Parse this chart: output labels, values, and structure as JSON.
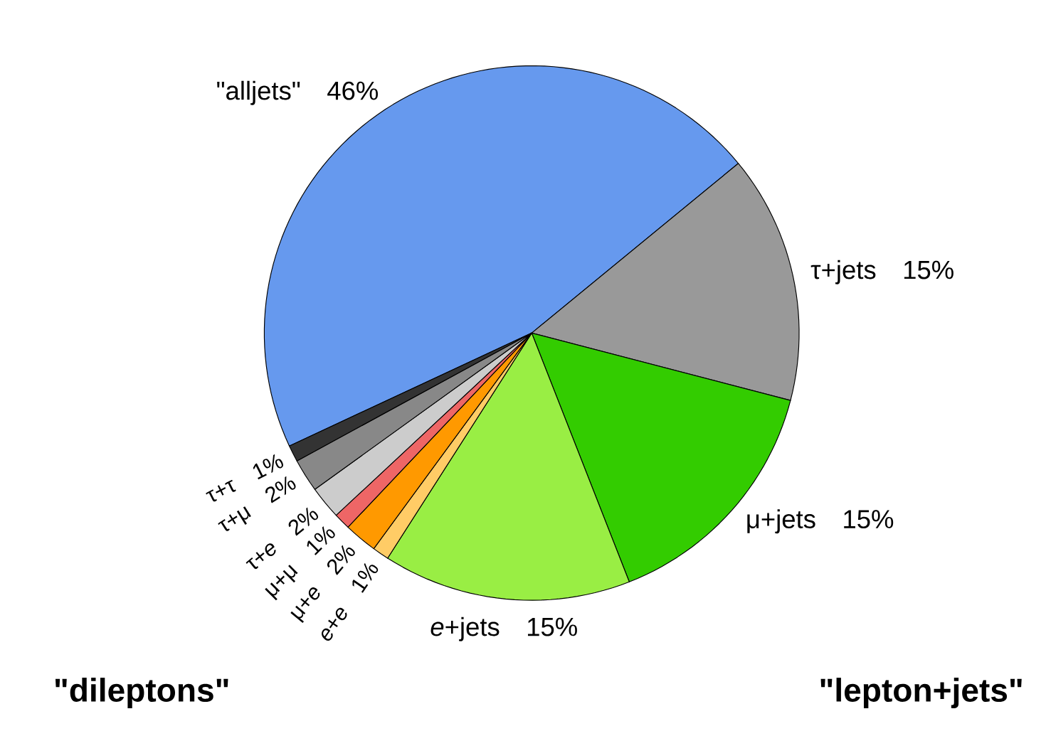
{
  "chart_data": {
    "type": "pie",
    "categories": [
      "\"alljets\"",
      "τ+jets",
      "μ+jets",
      "*e*+jets",
      "*e*+*e*",
      "μ+*e*",
      "μ+μ",
      "τ+*e*",
      "τ+μ",
      "τ+τ"
    ],
    "values": [
      46,
      15,
      15,
      15,
      1,
      2,
      1,
      2,
      2,
      1
    ],
    "value_labels": [
      "46%",
      "15%",
      "15%",
      "15%",
      "1%",
      "2%",
      "1%",
      "2%",
      "2%",
      "1%"
    ],
    "colors": [
      "#6699ee",
      "#999999",
      "#33cc00",
      "#99ee44",
      "#ffcc66",
      "#ff9900",
      "#ee6666",
      "#cccccc",
      "#888888",
      "#333333"
    ],
    "annotations": [
      "\"lepton+jets\"",
      "\"dileptons\""
    ]
  }
}
